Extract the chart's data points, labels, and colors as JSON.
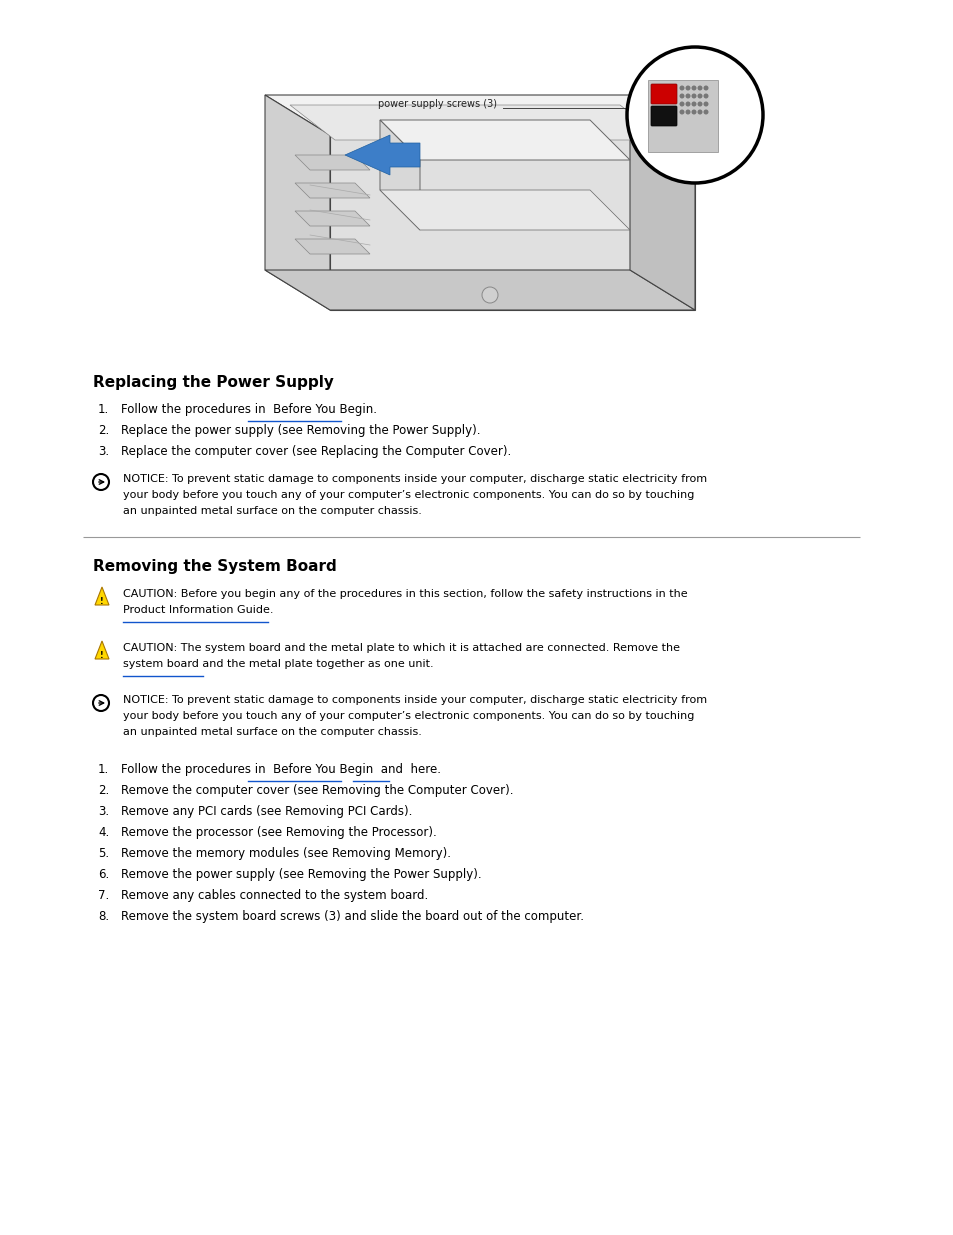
{
  "bg_color": "#ffffff",
  "page_width": 9.54,
  "page_height": 12.35,
  "diagram_label": "power supply screws (3)",
  "section1_heading": "Replacing the Power Supply",
  "section2_heading": "Removing the System Board",
  "para1_lines": [
    "Follow the procedures in  Before You Begin.",
    "Replace the power supply (see Removing the Power Supply).",
    "Replace the computer cover (see Replacing the Computer Cover)."
  ],
  "notice_lines": [
    "NOTICE: To prevent static damage to components inside your computer, discharge static electricity from",
    "your body before you touch any of your computer’s electronic components. You can do so by touching",
    "an unpainted metal surface on the computer chassis."
  ],
  "section2_para_lines": [
    "Follow the procedures in  Before You Begin  and  here.",
    "Remove the computer cover (see Removing the Computer Cover).",
    "Remove any PCI cards (see Removing PCI Cards).",
    "Remove the processor (see Removing the Processor).",
    "Remove the memory modules (see Removing Memory).",
    "Remove the power supply (see Removing the Power Supply).",
    "Remove any cables connected to the system board.",
    "Remove the system board screws (3) and slide the board out of the computer."
  ],
  "caution1_lines": [
    "CAUTION: Before you begin any of the procedures in this section, follow the safety instructions in the",
    "Product Information Guide."
  ],
  "caution2_lines": [
    "CAUTION: The system board and the metal plate to which it is attached are connected. Remove the",
    "system board and the metal plate together as one unit."
  ],
  "notice2_lines": [
    "NOTICE: To prevent static damage to components inside your computer, discharge static electricity from",
    "your body before you touch any of your computer’s electronic components. You can do so by touching",
    "an unpainted metal surface on the computer chassis."
  ]
}
